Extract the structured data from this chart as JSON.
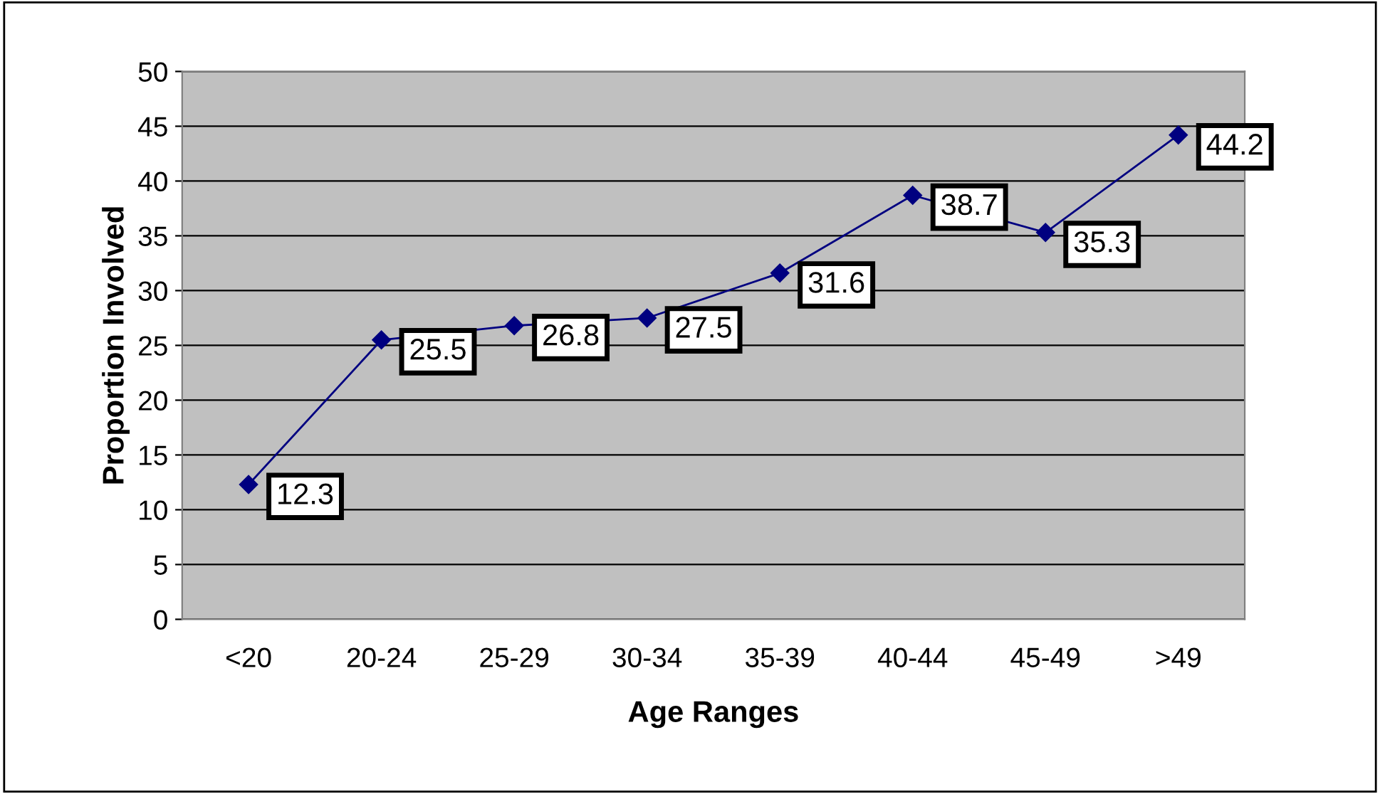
{
  "chart_data": {
    "type": "line",
    "xlabel": "Age Ranges",
    "ylabel": "Proportion Involved",
    "categories": [
      "<20",
      "20-24",
      "25-29",
      "30-34",
      "35-39",
      "40-44",
      "45-49",
      ">49"
    ],
    "series": [
      {
        "color": "#000080",
        "values": [
          12.3,
          25.5,
          26.8,
          27.5,
          31.6,
          38.7,
          35.3,
          44.2
        ]
      }
    ],
    "ylim": [
      0,
      50
    ],
    "yticks": [
      0,
      5,
      10,
      15,
      20,
      25,
      30,
      35,
      40,
      45,
      50
    ],
    "grid": "y",
    "marker": "diamond",
    "line_style": "solid",
    "data_labels": true,
    "legend": false
  }
}
